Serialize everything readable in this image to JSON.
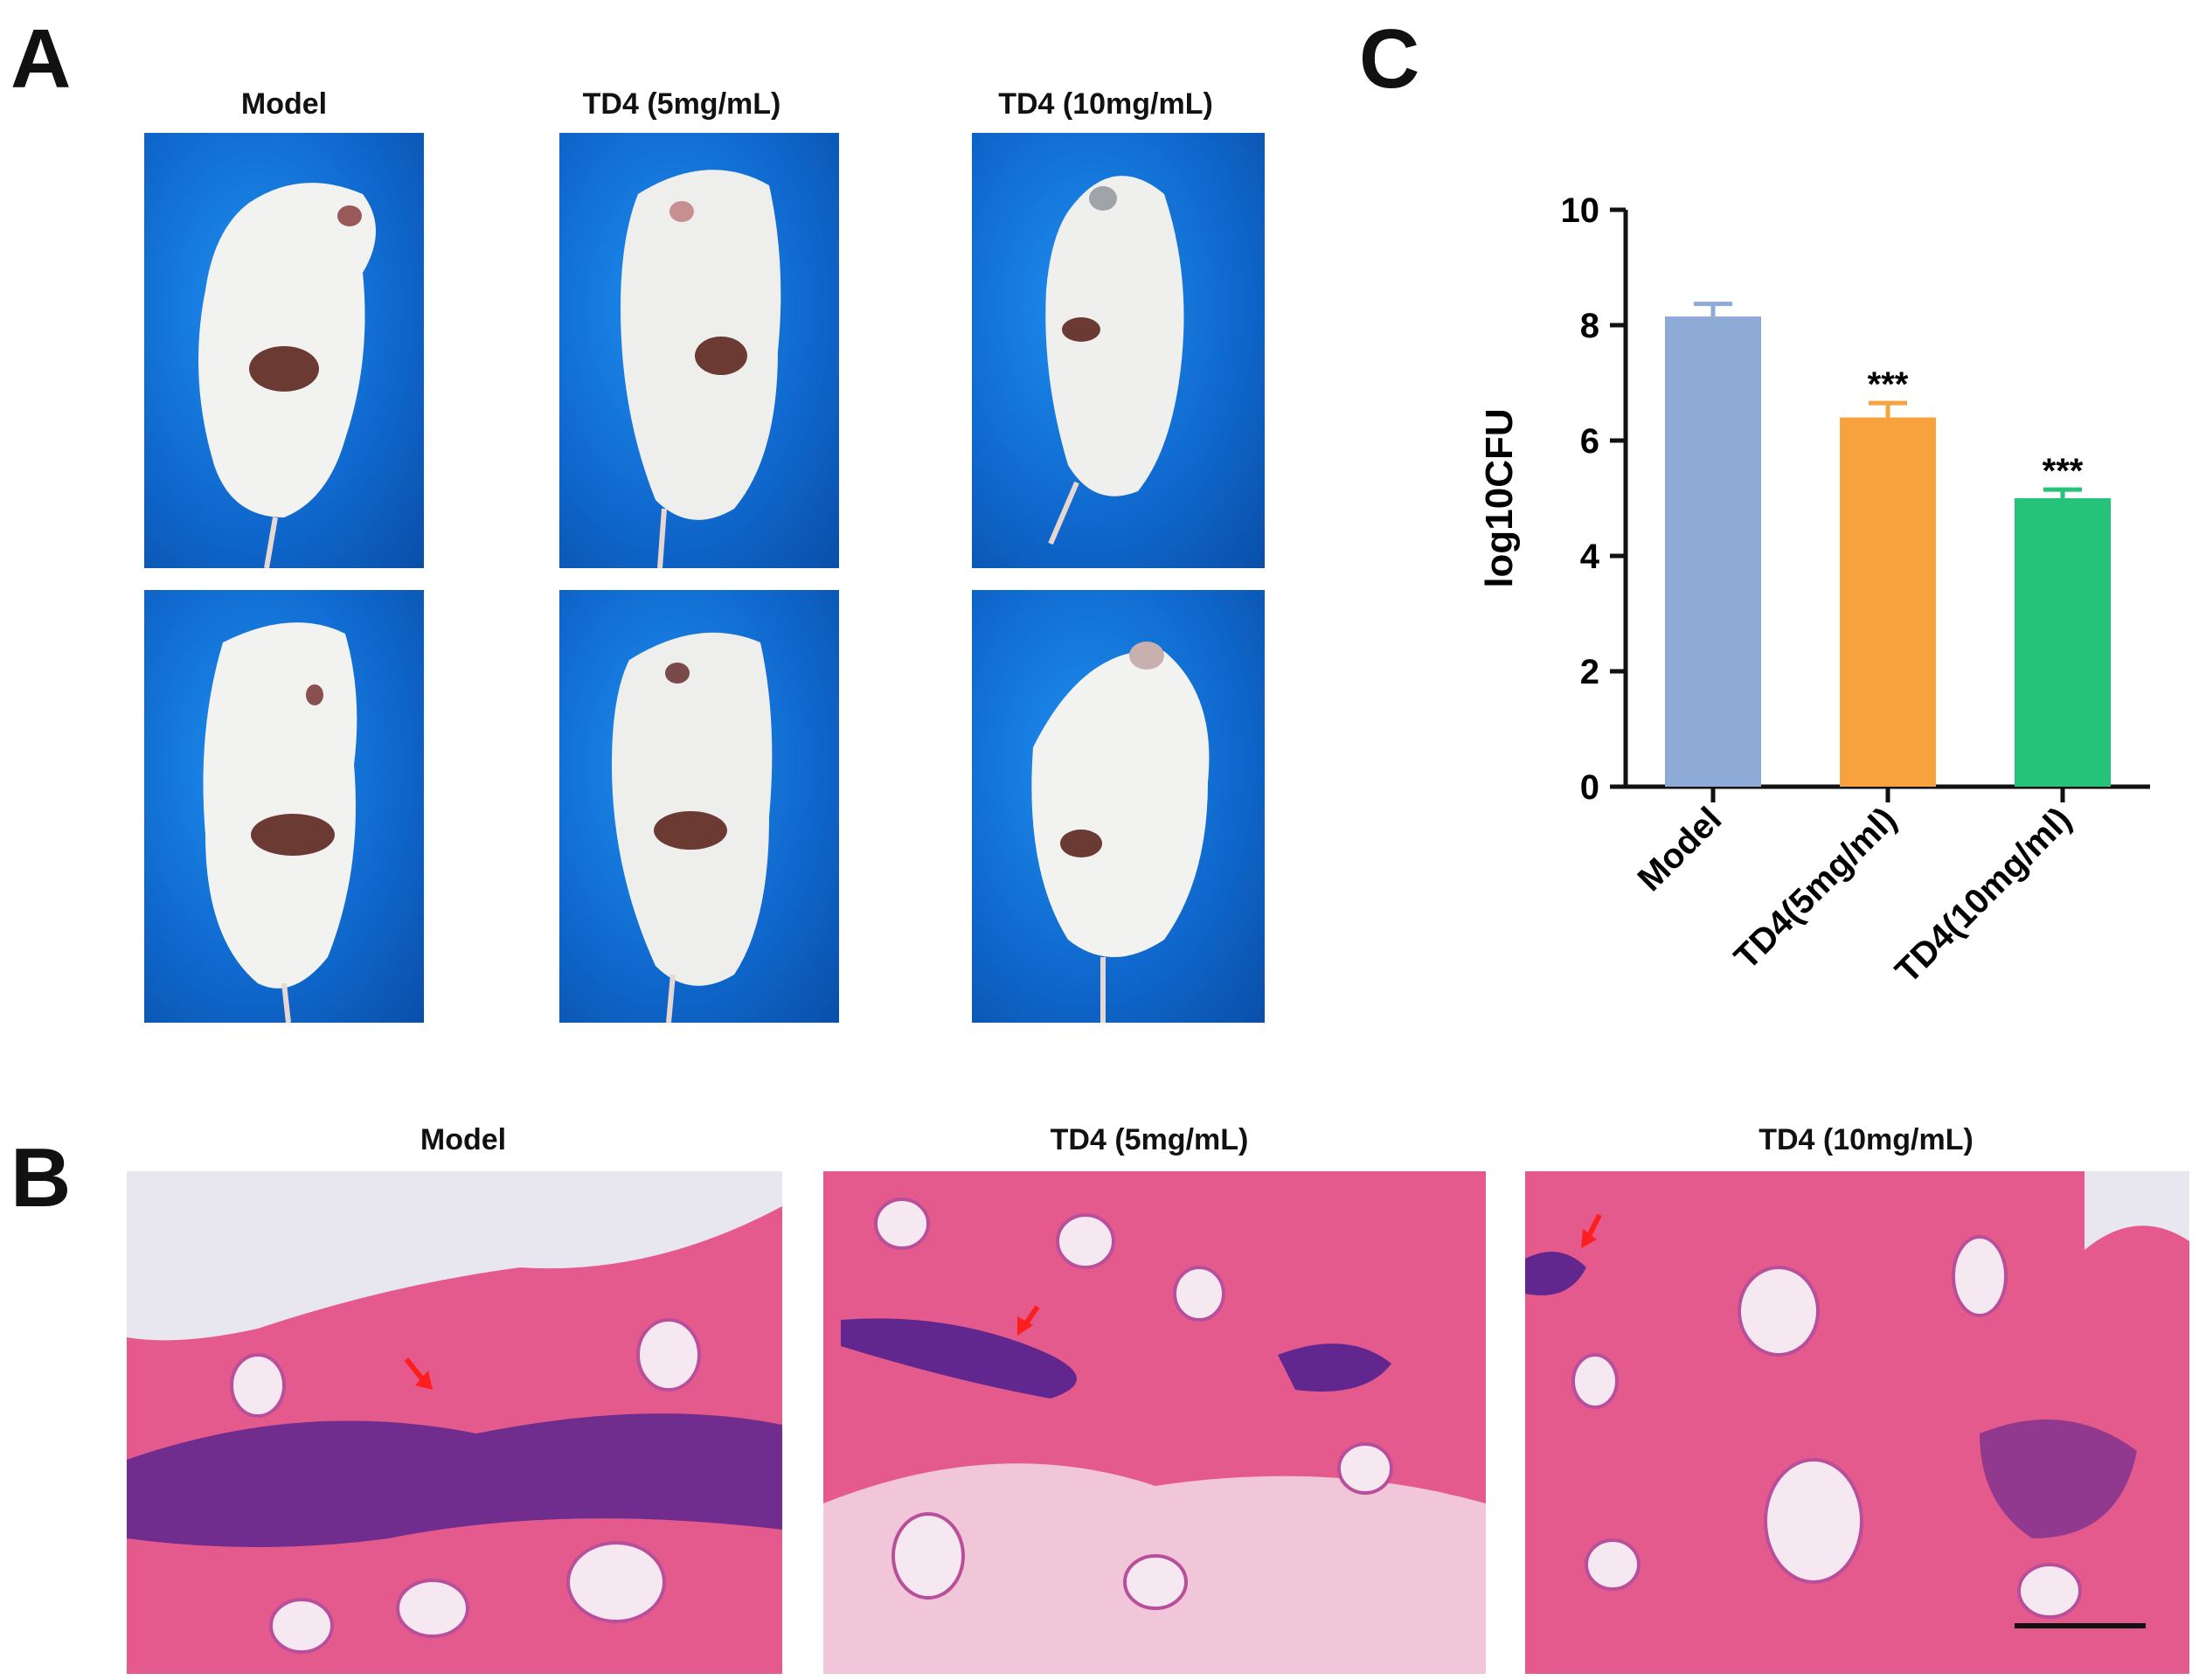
{
  "panels": {
    "A": {
      "letter": "A",
      "columns": [
        "Model",
        "TD4 (5mg/mL)",
        "TD4 (10mg/mL)"
      ]
    },
    "B": {
      "letter": "B",
      "columns": [
        "Model",
        "TD4 (5mg/mL)",
        "TD4 (10mg/mL)"
      ]
    },
    "C": {
      "letter": "C"
    }
  },
  "colors": {
    "photo_background": "#0f67cc",
    "mouse_fur": "#f2f2f0",
    "wound": "#6b3b33",
    "tissue_pink": "#e45a8c",
    "stain_purple": "#4b1f8f",
    "arrow": "#ff1e1e"
  },
  "chart_data": {
    "type": "bar",
    "categories": [
      "Model",
      "TD4(5mg/ml)",
      "TD4(10mg/ml)"
    ],
    "values": [
      8.15,
      6.4,
      5.0
    ],
    "errors": [
      0.22,
      0.25,
      0.15
    ],
    "annotations": [
      "",
      "***",
      "***"
    ],
    "bar_colors": [
      "#8eaad6",
      "#f8a13f",
      "#25c27a"
    ],
    "ylabel": "log10CFU",
    "xlabel": "",
    "ylim": [
      0,
      10
    ],
    "yticks": [
      0,
      2,
      4,
      6,
      8,
      10
    ],
    "grid": false,
    "legend": "none"
  }
}
